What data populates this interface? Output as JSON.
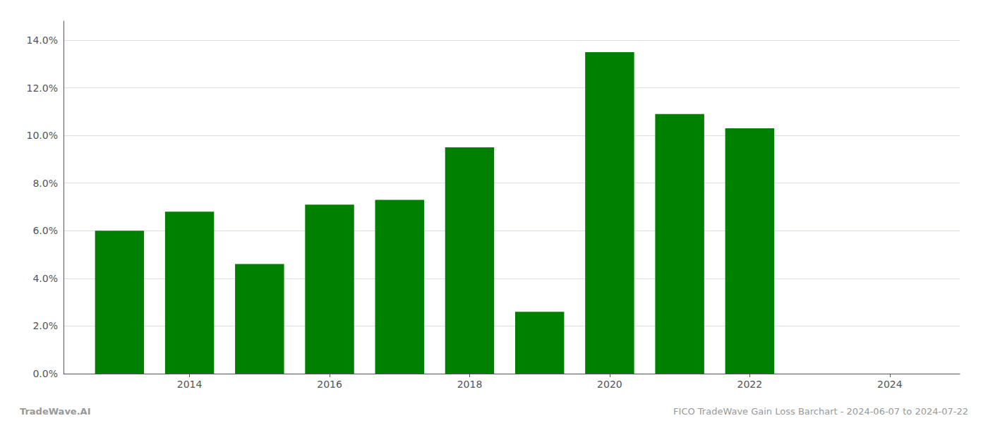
{
  "chart_data": {
    "type": "bar",
    "x": [
      2013,
      2014,
      2015,
      2016,
      2017,
      2018,
      2019,
      2020,
      2021,
      2022
    ],
    "values": [
      0.06,
      0.068,
      0.046,
      0.071,
      0.073,
      0.095,
      0.026,
      0.135,
      0.109,
      0.103
    ],
    "color": "#008000",
    "xlim": [
      2012.2,
      2025.0
    ],
    "xticks": [
      2014,
      2016,
      2018,
      2020,
      2022,
      2024
    ],
    "ylim": [
      0,
      0.148
    ],
    "yticks": [
      {
        "value": 0.0,
        "label": "0.0%"
      },
      {
        "value": 0.02,
        "label": "2.0%"
      },
      {
        "value": 0.04,
        "label": "4.0%"
      },
      {
        "value": 0.06,
        "label": "6.0%"
      },
      {
        "value": 0.08,
        "label": "8.0%"
      },
      {
        "value": 0.1,
        "label": "10.0%"
      },
      {
        "value": 0.12,
        "label": "12.0%"
      },
      {
        "value": 0.14,
        "label": "14.0%"
      }
    ],
    "grid": true,
    "annotations": [
      "TradeWave.AI",
      "FICO TradeWave Gain Loss Barchart - 2024-06-07 to 2024-07-22"
    ]
  }
}
